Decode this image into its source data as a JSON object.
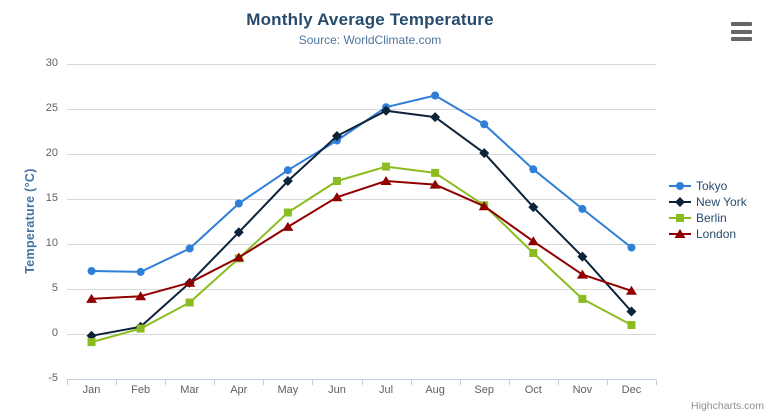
{
  "title": "Monthly Average Temperature",
  "subtitle": "Source: WorldClimate.com",
  "credits": "Highcharts.com",
  "export_menu_icon": "hamburger-icon",
  "colors": {
    "title_text": "#274b6d",
    "subtitle_text": "#4d759e",
    "axis_title_text": "#4572a7",
    "tick_text": "#606060",
    "gridline": "#d8d8d8",
    "axis_line": "#c0d0e0",
    "credits_text": "#909090"
  },
  "chart_data": {
    "type": "line",
    "title": "Monthly Average Temperature",
    "subtitle": "Source: WorldClimate.com",
    "xlabel": "",
    "ylabel": "Temperature (°C)",
    "ylim": [
      -5,
      30
    ],
    "yticks": [
      -5,
      0,
      5,
      10,
      15,
      20,
      25,
      30
    ],
    "grid": true,
    "legend_position": "right",
    "categories": [
      "Jan",
      "Feb",
      "Mar",
      "Apr",
      "May",
      "Jun",
      "Jul",
      "Aug",
      "Sep",
      "Oct",
      "Nov",
      "Dec"
    ],
    "series": [
      {
        "name": "Tokyo",
        "color": "#2f7ed8",
        "marker": "circle",
        "values": [
          7.0,
          6.9,
          9.5,
          14.5,
          18.2,
          21.5,
          25.2,
          26.5,
          23.3,
          18.3,
          13.9,
          9.6
        ]
      },
      {
        "name": "New York",
        "color": "#0d233a",
        "marker": "diamond",
        "values": [
          -0.2,
          0.8,
          5.7,
          11.3,
          17.0,
          22.0,
          24.8,
          24.1,
          20.1,
          14.1,
          8.6,
          2.5
        ]
      },
      {
        "name": "Berlin",
        "color": "#8bbc21",
        "marker": "square",
        "values": [
          -0.9,
          0.6,
          3.5,
          8.4,
          13.5,
          17.0,
          18.6,
          17.9,
          14.3,
          9.0,
          3.9,
          1.0
        ]
      },
      {
        "name": "London",
        "color": "#910000",
        "marker": "triangle",
        "values": [
          3.9,
          4.2,
          5.7,
          8.5,
          11.9,
          15.2,
          17.0,
          16.6,
          14.2,
          10.3,
          6.6,
          4.8
        ]
      }
    ]
  }
}
